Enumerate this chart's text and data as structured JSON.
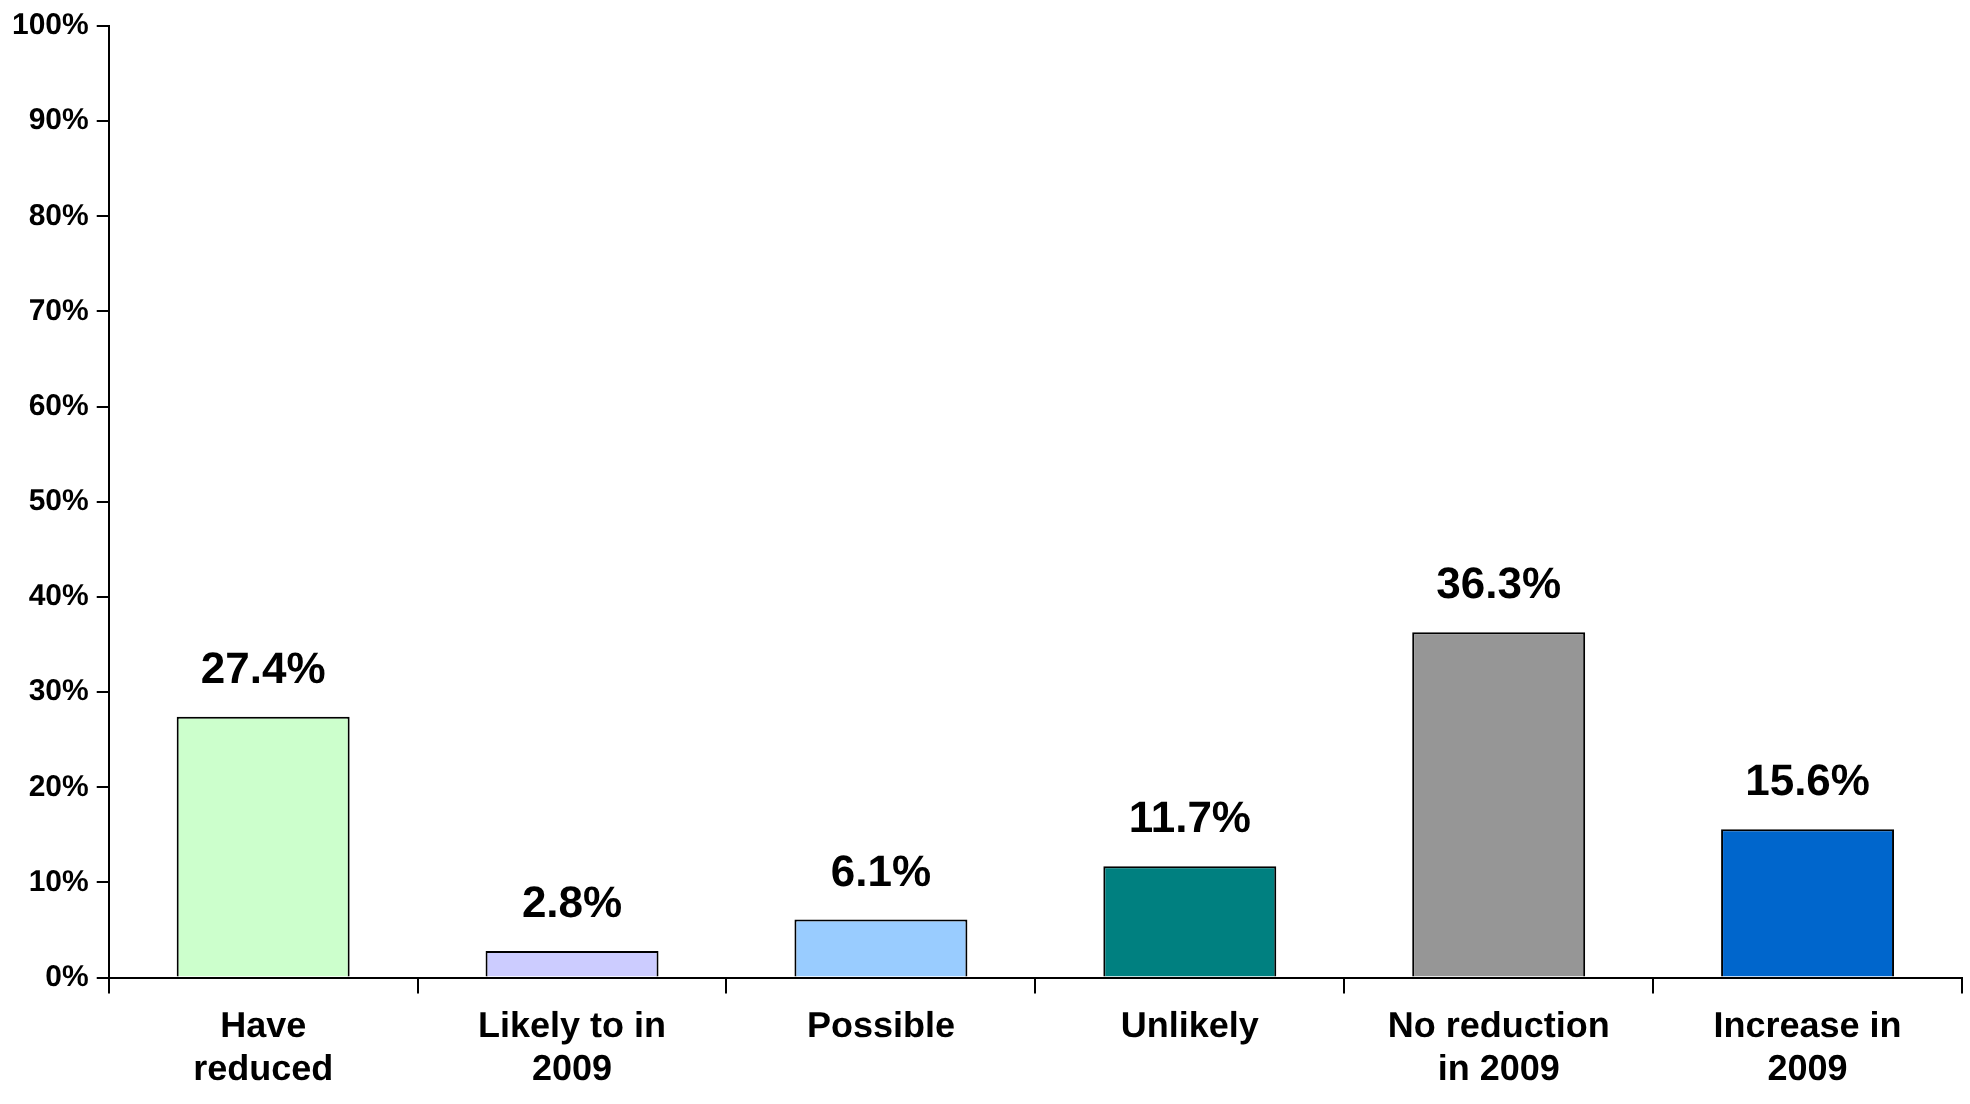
{
  "chart_data": {
    "type": "bar",
    "categories": [
      "Have reduced",
      "Likely to in 2009",
      "Possible",
      "Unlikely",
      "No reduction in 2009",
      "Increase in 2009"
    ],
    "values": [
      27.4,
      2.8,
      6.1,
      11.7,
      36.3,
      15.6
    ],
    "colors": [
      "#ccffcc",
      "#ccccff",
      "#99ccff",
      "#008080",
      "#969696",
      "#0066cc"
    ],
    "value_labels": [
      "27.4%",
      "2.8%",
      "6.1%",
      "11.7%",
      "36.3%",
      "15.6%"
    ],
    "ylim": [
      0,
      100
    ],
    "yticks": [
      {
        "value": 0,
        "label": "0%"
      },
      {
        "value": 10,
        "label": "10%"
      },
      {
        "value": 20,
        "label": "20%"
      },
      {
        "value": 30,
        "label": "30%"
      },
      {
        "value": 40,
        "label": "40%"
      },
      {
        "value": 50,
        "label": "50%"
      },
      {
        "value": 60,
        "label": "60%"
      },
      {
        "value": 70,
        "label": "70%"
      },
      {
        "value": 80,
        "label": "80%"
      },
      {
        "value": 90,
        "label": "90%"
      },
      {
        "value": 100,
        "label": "100%"
      }
    ],
    "grid": false,
    "legend": false
  }
}
